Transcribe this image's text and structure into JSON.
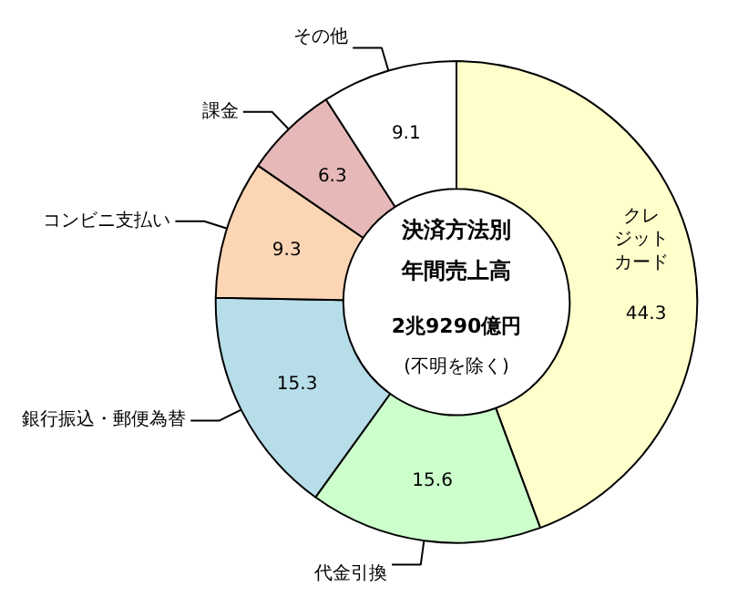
{
  "chart_data": {
    "type": "donut",
    "categories": [
      "クレジットカード",
      "代金引換",
      "銀行振込・郵便為替",
      "コンビニ支払い",
      "課金",
      "その他"
    ],
    "values": [
      44.3,
      15.6,
      15.3,
      9.3,
      6.3,
      9.1
    ],
    "colors": [
      "#ffffcc",
      "#ccffcc",
      "#b7dde8",
      "#fcd5b4",
      "#e6b9b8",
      "#ffffff"
    ],
    "data_labels": true,
    "annotations": [
      "決済方法別",
      "年間売上高",
      "2兆9290億円",
      "(不明を除く)"
    ],
    "legend": false
  }
}
